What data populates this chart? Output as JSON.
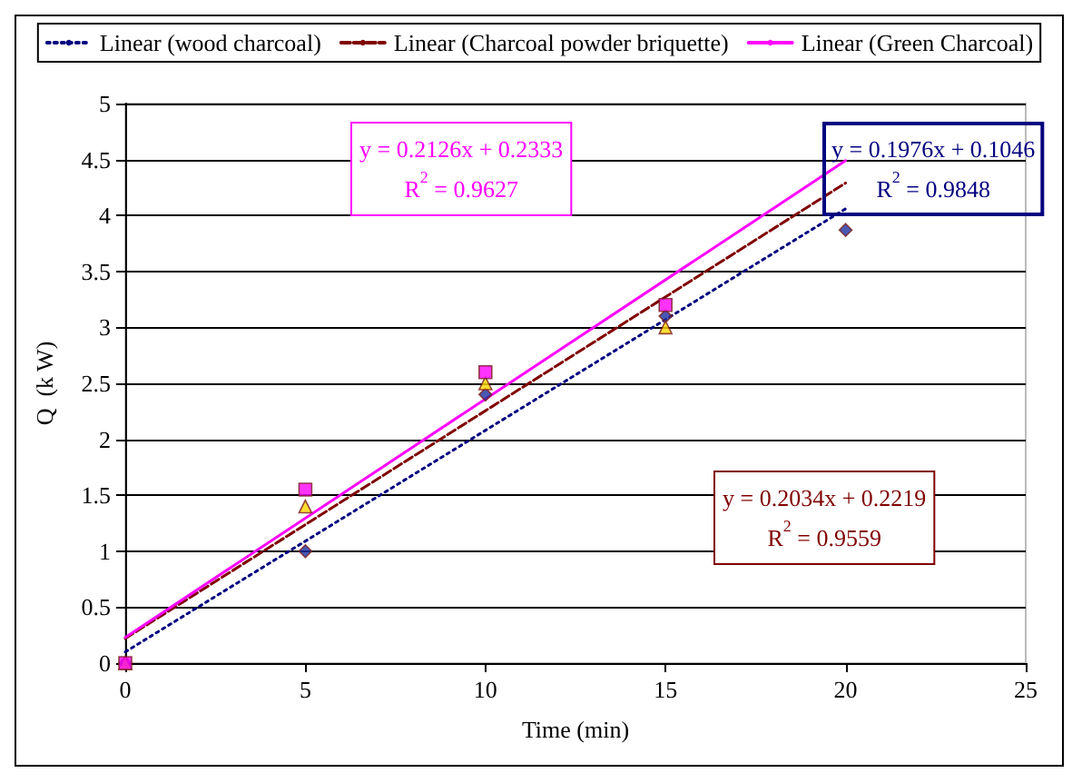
{
  "chart_data": {
    "type": "scatter",
    "xlabel": "Time (min)",
    "ylabel": "Q  (k W)",
    "series": [
      {
        "color": "#1a2fa0",
        "marker": "diamond",
        "x": [
          0,
          5,
          10,
          15,
          20
        ],
        "values": [
          0,
          1.0,
          2.4,
          3.1,
          3.87
        ]
      },
      {
        "color": "#ffd700",
        "marker": "triangle",
        "x": [
          0,
          5,
          10,
          15
        ],
        "values": [
          0,
          1.4,
          2.5,
          3.0
        ]
      },
      {
        "color": "#ff00ff",
        "marker": "square",
        "x": [
          0,
          5,
          10,
          15
        ],
        "values": [
          0,
          1.55,
          2.6,
          3.2
        ]
      },
      {
        "type": "line",
        "name": "Linear (wood charcoal)",
        "color": "#000080",
        "line_style": "dotted",
        "marker": "none",
        "x": [
          0,
          20
        ],
        "values": [
          0.1,
          4.06
        ]
      },
      {
        "type": "line",
        "name": "Linear (Charcoal powder briquette)",
        "color": "#800000",
        "line_style": "dashed",
        "marker": "none",
        "x": [
          0,
          20
        ],
        "values": [
          0.22,
          4.29
        ]
      },
      {
        "type": "line",
        "name": "Linear (Green Charcoal)",
        "color": "#ff00ff",
        "line_style": "solid",
        "marker": "none",
        "x": [
          0,
          20
        ],
        "values": [
          0.23,
          4.49
        ]
      }
    ],
    "annotations": [
      "y = 0.1976x + 0.1046\nR$^{2}$ = 0.9848",
      "y = 0.2034x + 0.2219\nR$^{2}$ = 0.9559",
      "y = 0.2126x + 0.2333\nR$^{2}$ = 0.9627"
    ],
    "xlim": [
      0,
      25
    ],
    "xticks": [
      0,
      5,
      10,
      15,
      20,
      25
    ],
    "ylim": [
      0,
      5
    ],
    "yticks": [
      0,
      0.5,
      1,
      1.5,
      2,
      2.5,
      3,
      3.5,
      4,
      4.5,
      5
    ],
    "grid": "y",
    "legend": "top"
  }
}
